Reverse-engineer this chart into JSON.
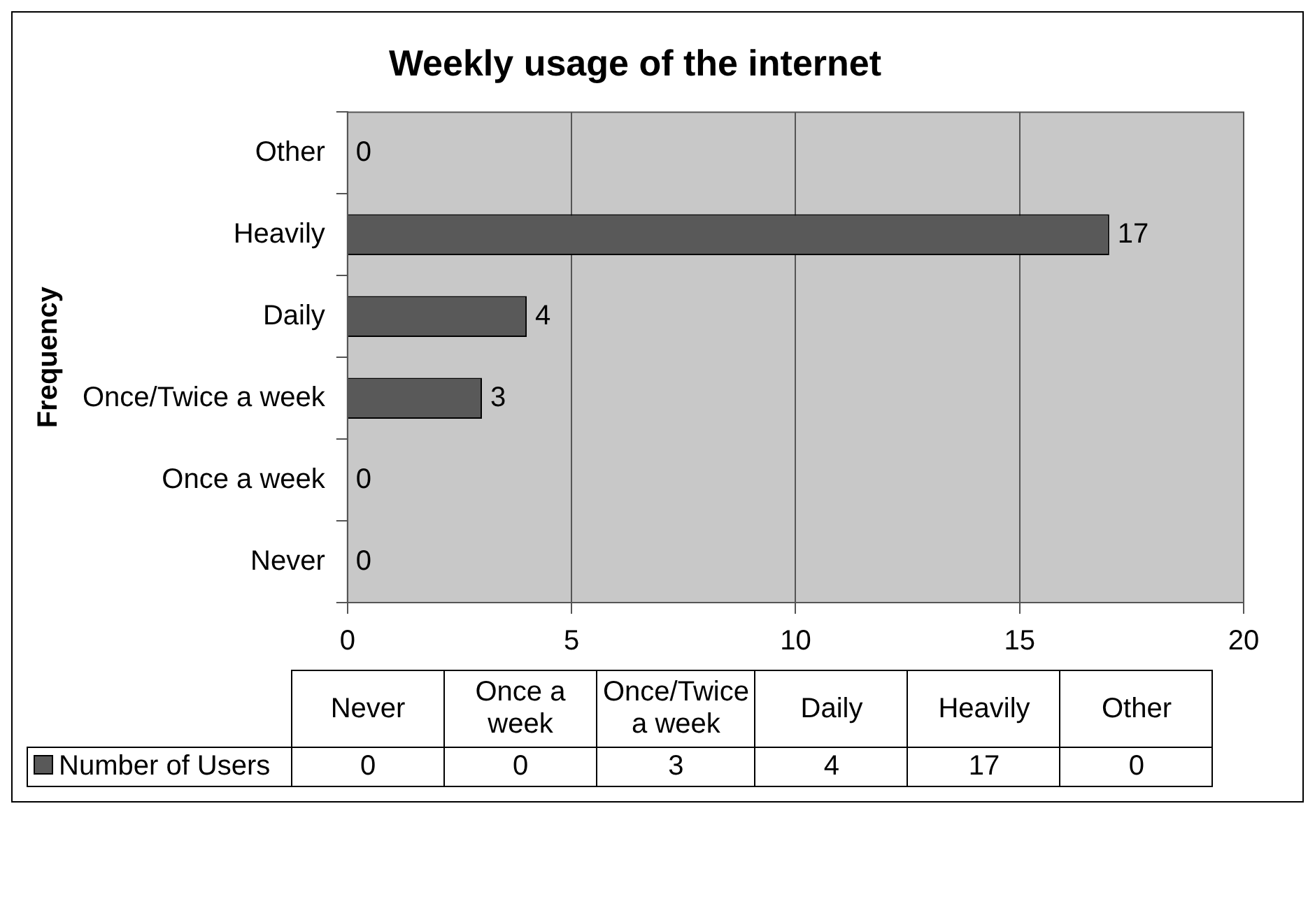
{
  "chart_data": [
    {
      "type": "bar",
      "orientation": "horizontal",
      "title": "Weekly usage of the internet",
      "ylabel": "Frequency",
      "categories": [
        "Other",
        "Heavily",
        "Daily",
        "Once/Twice a week",
        "Once a week",
        "Never"
      ],
      "series": [
        {
          "color": "#595959",
          "values": [
            0,
            17,
            4,
            3,
            0,
            0
          ]
        }
      ],
      "xlim": [
        0,
        20
      ],
      "xticks": [
        0,
        5,
        10,
        15,
        20
      ],
      "grid": "x",
      "data_labels": true
    },
    {
      "type": "other",
      "categories": [
        "Never",
        "Once a week",
        "Once/Twice a week",
        "Daily",
        "Heavily",
        "Other"
      ],
      "series": [
        {
          "name": "Number of Users",
          "color": "#595959",
          "values": [
            0,
            0,
            3,
            4,
            17,
            0
          ]
        }
      ],
      "legend": "left",
      "data_labels": true
    }
  ]
}
